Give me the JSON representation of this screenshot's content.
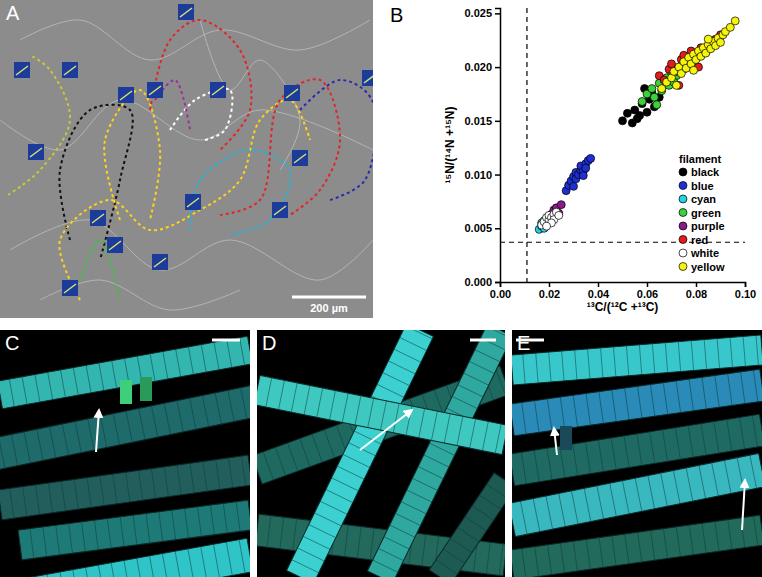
{
  "chart_data": {
    "type": "scatter",
    "x_label": "¹³C/(¹²C +¹³C)",
    "y_label": "¹⁵N/(¹⁴N +¹⁵N)",
    "legend_title": "filament",
    "legend": "lower right",
    "marker": "circle",
    "grid": false,
    "xlim": [
      0,
      0.1
    ],
    "ylim": [
      0,
      0.0255
    ],
    "xticks": [
      {
        "value": 0,
        "label": "0.00"
      },
      0.02,
      0.04,
      0.06,
      0.08,
      {
        "value": 0.1,
        "label": "0.10"
      }
    ],
    "yticks": [
      {
        "value": 0,
        "label": "0.000"
      },
      0.005,
      {
        "value": 0.01,
        "label": "0.010"
      },
      0.015,
      {
        "value": 0.02,
        "label": "0.020"
      },
      0.025
    ],
    "vlines": [
      0.011
    ],
    "hlines": [
      0.0037
    ],
    "series": [
      {
        "name": "black",
        "color": "#000000",
        "x": [
          0.05,
          0.052,
          0.054,
          0.055,
          0.057,
          0.058,
          0.06,
          0.061,
          0.062,
          0.063,
          0.065,
          0.066,
          0.056,
          0.059
        ],
        "values": [
          0.015,
          0.0157,
          0.0148,
          0.016,
          0.0155,
          0.0166,
          0.0158,
          0.017,
          0.0176,
          0.0163,
          0.0172,
          0.0184,
          0.0152,
          0.018
        ]
      },
      {
        "name": "blue",
        "color": "#1f2fd6",
        "x": [
          0.027,
          0.028,
          0.029,
          0.03,
          0.031,
          0.031,
          0.032,
          0.033,
          0.033,
          0.034,
          0.035,
          0.035,
          0.036,
          0.037,
          0.03,
          0.034
        ],
        "values": [
          0.0085,
          0.009,
          0.0094,
          0.0098,
          0.0096,
          0.0102,
          0.01,
          0.0104,
          0.0108,
          0.0103,
          0.011,
          0.0106,
          0.0113,
          0.0115,
          0.0089,
          0.0099
        ]
      },
      {
        "name": "cyan",
        "color": "#22d3e0",
        "x": [
          0.016,
          0.017,
          0.017,
          0.018,
          0.018,
          0.019,
          0.019,
          0.02
        ],
        "values": [
          0.0049,
          0.0052,
          0.0055,
          0.005,
          0.0057,
          0.0054,
          0.0058,
          0.0056
        ]
      },
      {
        "name": "green",
        "color": "#3ad13a",
        "x": [
          0.058,
          0.06,
          0.062,
          0.063,
          0.065,
          0.066,
          0.068,
          0.069,
          0.07,
          0.072,
          0.073,
          0.075,
          0.076,
          0.078,
          0.08,
          0.082,
          0.064,
          0.071
        ],
        "values": [
          0.0168,
          0.0175,
          0.018,
          0.0172,
          0.0185,
          0.0178,
          0.019,
          0.0183,
          0.0195,
          0.0192,
          0.02,
          0.0198,
          0.0205,
          0.021,
          0.0212,
          0.0216,
          0.0165,
          0.0186
        ]
      },
      {
        "name": "purple",
        "color": "#8a1a8a",
        "x": [
          0.021,
          0.022,
          0.023,
          0.024,
          0.025
        ],
        "values": [
          0.0063,
          0.0067,
          0.0069,
          0.0064,
          0.0072
        ]
      },
      {
        "name": "red",
        "color": "#e41a1c",
        "x": [
          0.065,
          0.067,
          0.069,
          0.07,
          0.072,
          0.074,
          0.075,
          0.077,
          0.078,
          0.08,
          0.082,
          0.084,
          0.086,
          0.088,
          0.09,
          0.073,
          0.081
        ],
        "values": [
          0.0192,
          0.0188,
          0.0198,
          0.0203,
          0.0196,
          0.0207,
          0.0211,
          0.0204,
          0.0215,
          0.021,
          0.0218,
          0.0214,
          0.0222,
          0.0226,
          0.023,
          0.0183,
          0.02
        ]
      },
      {
        "name": "white",
        "color": "#ffffff",
        "x": [
          0.017,
          0.018,
          0.019,
          0.02,
          0.02,
          0.021,
          0.022,
          0.022,
          0.023,
          0.024,
          0.021,
          0.019
        ],
        "values": [
          0.0053,
          0.0056,
          0.006,
          0.0058,
          0.0062,
          0.006,
          0.0063,
          0.0058,
          0.0065,
          0.0062,
          0.0055,
          0.0052
        ]
      },
      {
        "name": "yellow",
        "color": "#f5f50a",
        "x": [
          0.066,
          0.068,
          0.07,
          0.071,
          0.073,
          0.074,
          0.075,
          0.076,
          0.077,
          0.078,
          0.079,
          0.08,
          0.081,
          0.082,
          0.083,
          0.084,
          0.085,
          0.086,
          0.087,
          0.088,
          0.089,
          0.09,
          0.091,
          0.092,
          0.094,
          0.096,
          0.072,
          0.079,
          0.085
        ],
        "values": [
          0.018,
          0.0186,
          0.019,
          0.0196,
          0.02,
          0.0194,
          0.0205,
          0.0199,
          0.0209,
          0.0203,
          0.0212,
          0.0207,
          0.0215,
          0.021,
          0.0218,
          0.0213,
          0.0221,
          0.0217,
          0.0224,
          0.022,
          0.0227,
          0.0223,
          0.023,
          0.0233,
          0.0237,
          0.0243,
          0.0183,
          0.0197,
          0.0226
        ]
      }
    ]
  },
  "panels": {
    "labels": [
      "A",
      "B",
      "C",
      "D",
      "E"
    ],
    "scale_bar_label": "200 µm"
  }
}
